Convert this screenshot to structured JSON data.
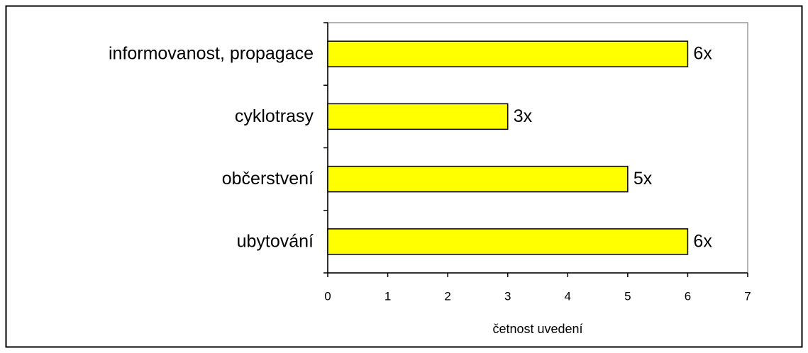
{
  "chart_data": {
    "type": "bar",
    "orientation": "horizontal",
    "categories": [
      "informovanost, propagace",
      "cyklotrasy",
      "občerstvení",
      "ubytování"
    ],
    "values": [
      6,
      3,
      5,
      6
    ],
    "value_labels": [
      "6x",
      "3x",
      "5x",
      "6x"
    ],
    "color": "#ffff00",
    "xlabel": "četnost uvedení",
    "xlim": [
      0,
      7
    ],
    "xticks": [
      0,
      1,
      2,
      3,
      4,
      5,
      6,
      7
    ]
  }
}
